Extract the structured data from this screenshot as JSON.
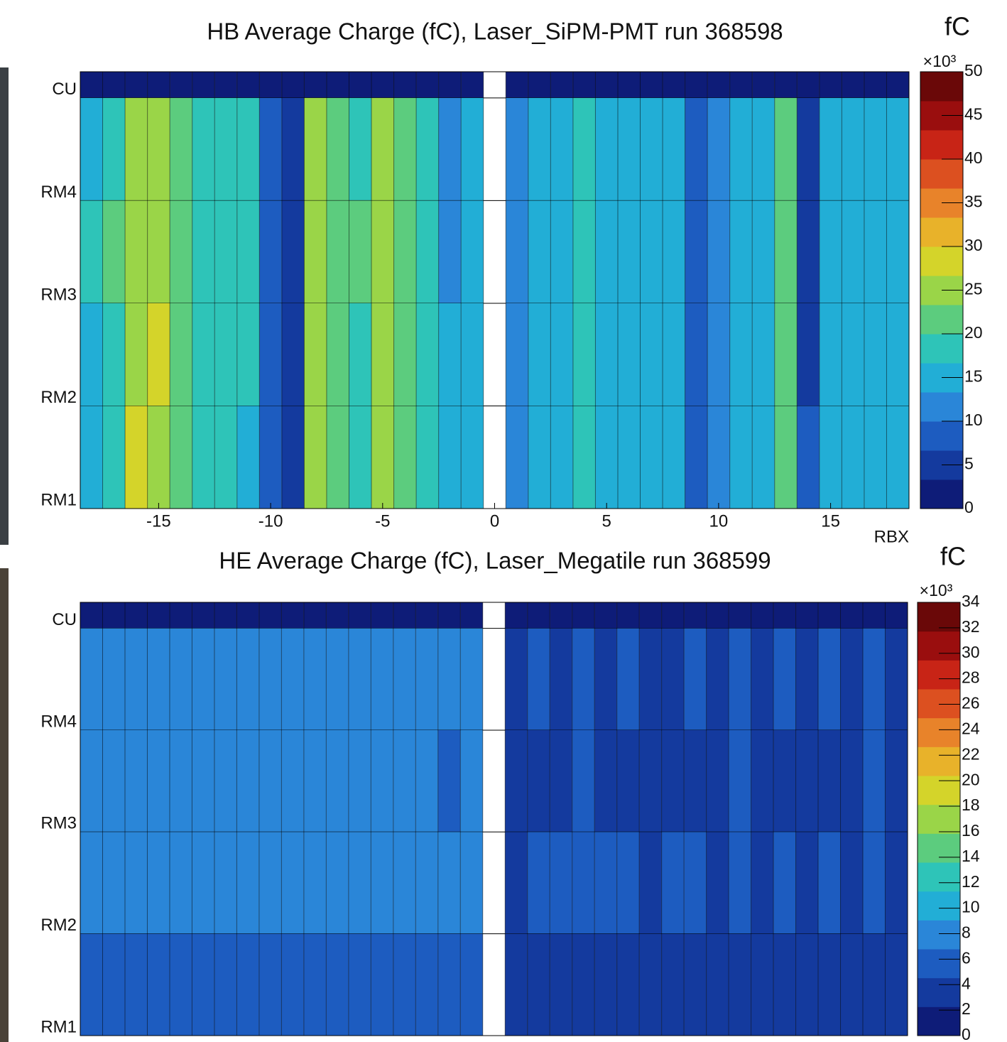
{
  "chart_data": [
    {
      "type": "heatmap",
      "title": "HB Average Charge (fC), Laser_SiPM-PMT run 368598",
      "x_label": "RBX",
      "y_categories": [
        "CU",
        "RM4",
        "RM3",
        "RM2",
        "RM1"
      ],
      "x": [
        -18,
        -17,
        -16,
        -15,
        -14,
        -13,
        -12,
        -11,
        -10,
        -9,
        -8,
        -7,
        -6,
        -5,
        -4,
        -3,
        -2,
        -1,
        0,
        1,
        2,
        3,
        4,
        5,
        6,
        7,
        8,
        9,
        10,
        11,
        12,
        13,
        14,
        15,
        16,
        17,
        18
      ],
      "values": [
        [
          1,
          1,
          1,
          1,
          1,
          1,
          1,
          1,
          1,
          1,
          1,
          1,
          1,
          1,
          1,
          1,
          1,
          1,
          null,
          1,
          1,
          1,
          1,
          1,
          1,
          1,
          1,
          1,
          1,
          1,
          1,
          1,
          1,
          1,
          1,
          1,
          1
        ],
        [
          16,
          19,
          24,
          26,
          21,
          19,
          18,
          17,
          8,
          5,
          24,
          21,
          19,
          24,
          20,
          17,
          12,
          16,
          null,
          11,
          14,
          15,
          17,
          16,
          15,
          14,
          15,
          8,
          10,
          15,
          16,
          22,
          6,
          16,
          15,
          14,
          15
        ],
        [
          17,
          20,
          25,
          26,
          22,
          19,
          18,
          17,
          8,
          5,
          25,
          22,
          20,
          25,
          20,
          17,
          11,
          16,
          null,
          11,
          14,
          16,
          17,
          16,
          15,
          14,
          15,
          8,
          10,
          15,
          16,
          22,
          6,
          16,
          15,
          14,
          15
        ],
        [
          16,
          19,
          25,
          27,
          21,
          19,
          18,
          17,
          8,
          5,
          26,
          21,
          19,
          26,
          21,
          17,
          14,
          16,
          null,
          11,
          14,
          15,
          17,
          16,
          15,
          14,
          15,
          8,
          10,
          15,
          16,
          23,
          6,
          16,
          15,
          14,
          15
        ],
        [
          15,
          18,
          28,
          25,
          20,
          18,
          17,
          16,
          8,
          5,
          24,
          20,
          19,
          24,
          21,
          17,
          15,
          16,
          null,
          11,
          14,
          15,
          17,
          16,
          15,
          14,
          15,
          8,
          10,
          15,
          16,
          22,
          7,
          16,
          15,
          14,
          15
        ]
      ],
      "xlim": [
        -18.5,
        18.5
      ],
      "xticks": [
        -15,
        -10,
        -5,
        0,
        5,
        10,
        15
      ],
      "colorbar": {
        "label": "fC",
        "multiplier": "×10³",
        "lim": [
          0,
          50
        ],
        "ticks": [
          0,
          5,
          10,
          15,
          20,
          25,
          30,
          35,
          40,
          45,
          50
        ]
      },
      "colormap": [
        "#0e1c78",
        "#143a9e",
        "#1d5cc0",
        "#2a86d8",
        "#22aed6",
        "#2ec4b8",
        "#5ccc7e",
        "#9ad548",
        "#d4d42a",
        "#e8b22a",
        "#e8832a",
        "#dc5020",
        "#c82416",
        "#9a0e0e",
        "#6a0808"
      ]
    },
    {
      "type": "heatmap",
      "title": "HE Average Charge (fC), Laser_Megatile run 368599",
      "y_categories": [
        "CU",
        "RM4",
        "RM3",
        "RM2",
        "RM1"
      ],
      "x": [
        -18,
        -17,
        -16,
        -15,
        -14,
        -13,
        -12,
        -11,
        -10,
        -9,
        -8,
        -7,
        -6,
        -5,
        -4,
        -3,
        -2,
        -1,
        0,
        1,
        2,
        3,
        4,
        5,
        6,
        7,
        8,
        9,
        10,
        11,
        12,
        13,
        14,
        15,
        16,
        17,
        18
      ],
      "values": [
        [
          1,
          1,
          1,
          1,
          1,
          1,
          1,
          1,
          1,
          1,
          1,
          1,
          1,
          1,
          1,
          1,
          1,
          1,
          null,
          1,
          1,
          1,
          1,
          1,
          1,
          1,
          1,
          1,
          1,
          1,
          1,
          1,
          1,
          1,
          1,
          1,
          1
        ],
        [
          7,
          8,
          9,
          8,
          7,
          8,
          7,
          8,
          7,
          8,
          9,
          8,
          7,
          8,
          7,
          8,
          7,
          7,
          null,
          4,
          5,
          4,
          5,
          4,
          5,
          4,
          4,
          5,
          4,
          5,
          4,
          5,
          4,
          5,
          4,
          5,
          4
        ],
        [
          7,
          8,
          8,
          8,
          7,
          7,
          7,
          8,
          7,
          8,
          8,
          7,
          7,
          7,
          7,
          7,
          6,
          7,
          null,
          4,
          4,
          4,
          5,
          4,
          4,
          4,
          4,
          4,
          4,
          5,
          4,
          4,
          4,
          4,
          4,
          5,
          4
        ],
        [
          8,
          9,
          9,
          9,
          8,
          9,
          8,
          9,
          8,
          8,
          9,
          8,
          8,
          9,
          8,
          8,
          7,
          8,
          null,
          4,
          5,
          5,
          5,
          5,
          5,
          4,
          5,
          5,
          4,
          5,
          4,
          5,
          4,
          5,
          4,
          6,
          4
        ],
        [
          5,
          6,
          6,
          6,
          5,
          6,
          5,
          6,
          5,
          6,
          6,
          5,
          5,
          6,
          5,
          5,
          5,
          5,
          null,
          3,
          4,
          3,
          4,
          3,
          4,
          3,
          3,
          4,
          3,
          4,
          3,
          4,
          3,
          4,
          3,
          4,
          3
        ]
      ],
      "xlim": [
        -18.5,
        18.5
      ],
      "colorbar": {
        "label": "fC",
        "multiplier": "×10³",
        "lim": [
          0,
          34
        ],
        "ticks": [
          0,
          2,
          4,
          6,
          8,
          10,
          12,
          14,
          16,
          18,
          20,
          22,
          24,
          26,
          28,
          30,
          32,
          34
        ]
      },
      "colormap": [
        "#0e1c78",
        "#143a9e",
        "#1d5cc0",
        "#2a86d8",
        "#22aed6",
        "#2ec4b8",
        "#5ccc7e",
        "#9ad548",
        "#d4d42a",
        "#e8b22a",
        "#e8832a",
        "#dc5020",
        "#c82416",
        "#9a0e0e",
        "#6a0808"
      ]
    }
  ]
}
